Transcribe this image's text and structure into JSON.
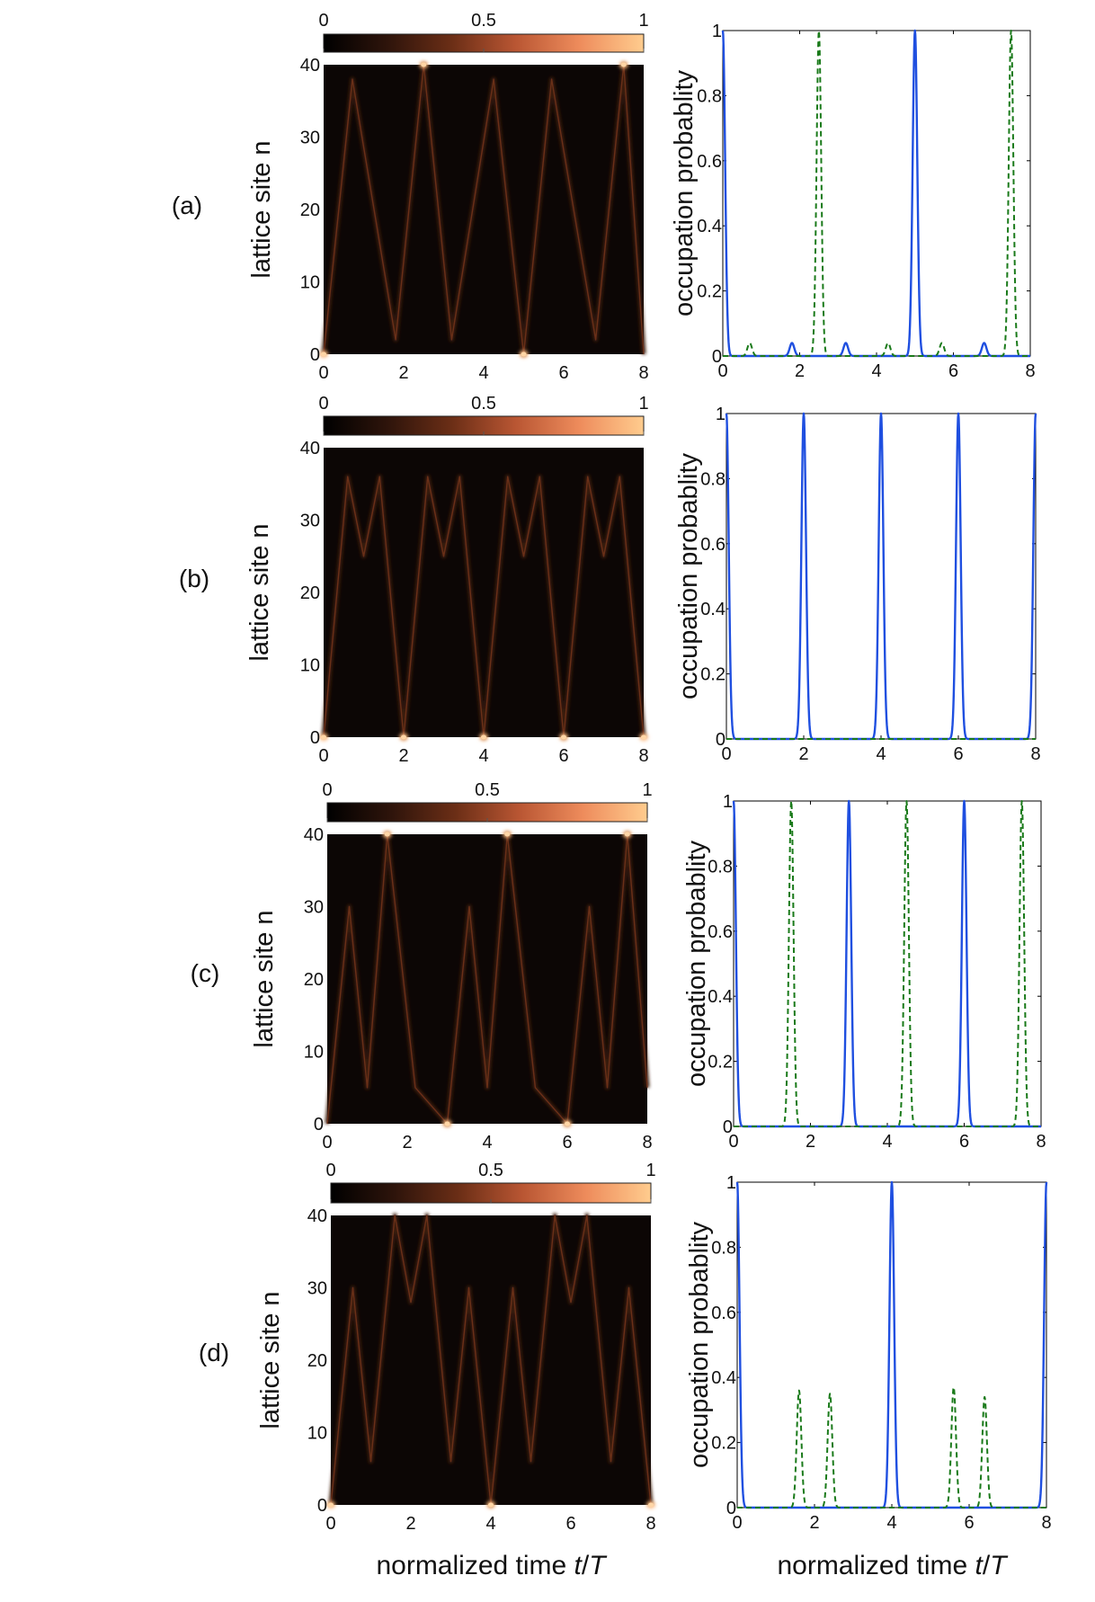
{
  "figure": {
    "xlabel": "normalized time t/T",
    "heatmap_ylabel": "lattice site n",
    "line_ylabel": "occupation probablity",
    "colorbar_ticks": [
      "0",
      "0.5",
      "1"
    ],
    "colormap": [
      "#000000",
      "#2e140b",
      "#6b2e16",
      "#b95633",
      "#ee8c5c",
      "#ffcc8e"
    ],
    "line_colors": {
      "solid": "#1f4fe0",
      "dashed": "#1a7a1a"
    }
  },
  "chart_data": [
    {
      "type": "heatmap",
      "panel": "(a)",
      "xlabel": "",
      "ylabel": "lattice site n",
      "xlim": [
        0,
        8
      ],
      "ylim": [
        0,
        40
      ],
      "xticks": [
        "0",
        "2",
        "4",
        "6",
        "8"
      ],
      "yticks": [
        "0",
        "10",
        "20",
        "30",
        "40"
      ],
      "colorbar": {
        "range": [
          0,
          1
        ],
        "ticks": [
          "0",
          "0.5",
          "1"
        ]
      },
      "trajectory_t": [
        0,
        0.72,
        1.8,
        2.5,
        3.2,
        4.25,
        5.0,
        5.7,
        6.8,
        7.5,
        8.0
      ],
      "trajectory_n": [
        0,
        38,
        2,
        40,
        2,
        38,
        0,
        38,
        2,
        40,
        0
      ],
      "bright_spots": [
        {
          "t": 0,
          "n": 0
        },
        {
          "t": 2.5,
          "n": 40
        },
        {
          "t": 5.0,
          "n": 0
        },
        {
          "t": 7.5,
          "n": 40
        }
      ]
    },
    {
      "type": "line",
      "panel": "(a)",
      "xlabel": "",
      "ylabel": "occupation probablity",
      "xlim": [
        0,
        8
      ],
      "ylim": [
        0,
        1
      ],
      "xticks": [
        "0",
        "2",
        "4",
        "6",
        "8"
      ],
      "yticks": [
        "0",
        "0.2",
        "0.4",
        "0.6",
        "0.8",
        "1"
      ],
      "series": [
        {
          "style": "solid",
          "peaks": [
            {
              "x": 0,
              "y": 1
            },
            {
              "x": 1.8,
              "y": 0.04
            },
            {
              "x": 3.2,
              "y": 0.04
            },
            {
              "x": 5.0,
              "y": 1
            },
            {
              "x": 6.8,
              "y": 0.04
            }
          ]
        },
        {
          "style": "dashed",
          "peaks": [
            {
              "x": 0.7,
              "y": 0.04
            },
            {
              "x": 2.5,
              "y": 1
            },
            {
              "x": 4.3,
              "y": 0.04
            },
            {
              "x": 5.7,
              "y": 0.04
            },
            {
              "x": 7.5,
              "y": 1
            }
          ]
        }
      ]
    },
    {
      "type": "heatmap",
      "panel": "(b)",
      "xlabel": "",
      "ylabel": "lattice site n",
      "xlim": [
        0,
        8
      ],
      "ylim": [
        0,
        40
      ],
      "xticks": [
        "0",
        "2",
        "4",
        "6",
        "8"
      ],
      "yticks": [
        "0",
        "10",
        "20",
        "30",
        "40"
      ],
      "colorbar": {
        "range": [
          0,
          1
        ],
        "ticks": [
          "0",
          "0.5",
          "1"
        ]
      },
      "trajectory_t": [
        0,
        0.6,
        1.0,
        1.4,
        2.0,
        2.6,
        3.0,
        3.4,
        4.0,
        4.6,
        5.0,
        5.4,
        6.0,
        6.6,
        7.0,
        7.4,
        8.0
      ],
      "trajectory_n": [
        0,
        36,
        25,
        36,
        0,
        36,
        25,
        36,
        0,
        36,
        25,
        36,
        0,
        36,
        25,
        36,
        0
      ],
      "bright_spots": [
        {
          "t": 0,
          "n": 0
        },
        {
          "t": 2,
          "n": 0
        },
        {
          "t": 4,
          "n": 0
        },
        {
          "t": 6,
          "n": 0
        },
        {
          "t": 8,
          "n": 0
        }
      ]
    },
    {
      "type": "line",
      "panel": "(b)",
      "xlabel": "",
      "ylabel": "occupation probablity",
      "xlim": [
        0,
        8
      ],
      "ylim": [
        0,
        1
      ],
      "xticks": [
        "0",
        "2",
        "4",
        "6",
        "8"
      ],
      "yticks": [
        "0",
        "0.2",
        "0.4",
        "0.6",
        "0.8",
        "1"
      ],
      "series": [
        {
          "style": "solid",
          "peaks": [
            {
              "x": 0,
              "y": 1
            },
            {
              "x": 2,
              "y": 1
            },
            {
              "x": 4,
              "y": 1
            },
            {
              "x": 6,
              "y": 1
            },
            {
              "x": 8,
              "y": 1
            }
          ]
        },
        {
          "style": "dashed",
          "peaks": []
        }
      ]
    },
    {
      "type": "heatmap",
      "panel": "(c)",
      "xlabel": "",
      "ylabel": "lattice site n",
      "xlim": [
        0,
        8
      ],
      "ylim": [
        0,
        40
      ],
      "xticks": [
        "0",
        "2",
        "4",
        "6",
        "8"
      ],
      "yticks": [
        "0",
        "10",
        "20",
        "30",
        "40"
      ],
      "colorbar": {
        "range": [
          0,
          1
        ],
        "ticks": [
          "0",
          "0.5",
          "1"
        ]
      },
      "trajectory_t": [
        0,
        0.55,
        1.0,
        1.5,
        2.2,
        3.0,
        3.55,
        4.0,
        4.5,
        5.2,
        6.0,
        6.55,
        7.0,
        7.5,
        8.0
      ],
      "trajectory_n": [
        0,
        30,
        5,
        40,
        5,
        0,
        30,
        5,
        40,
        5,
        0,
        30,
        5,
        40,
        5
      ],
      "bright_spots": [
        {
          "t": 1.5,
          "n": 40
        },
        {
          "t": 3.0,
          "n": 0
        },
        {
          "t": 4.5,
          "n": 40
        },
        {
          "t": 6.0,
          "n": 0
        },
        {
          "t": 7.5,
          "n": 40
        }
      ]
    },
    {
      "type": "line",
      "panel": "(c)",
      "xlabel": "",
      "ylabel": "occupation probablity",
      "xlim": [
        0,
        8
      ],
      "ylim": [
        0,
        1
      ],
      "xticks": [
        "0",
        "2",
        "4",
        "6",
        "8"
      ],
      "yticks": [
        "0",
        "0.2",
        "0.4",
        "0.6",
        "0.8",
        "1"
      ],
      "series": [
        {
          "style": "solid",
          "peaks": [
            {
              "x": 0,
              "y": 1
            },
            {
              "x": 3,
              "y": 1
            },
            {
              "x": 6,
              "y": 1
            }
          ]
        },
        {
          "style": "dashed",
          "peaks": [
            {
              "x": 1.5,
              "y": 1
            },
            {
              "x": 4.5,
              "y": 1
            },
            {
              "x": 7.5,
              "y": 1
            }
          ]
        }
      ]
    },
    {
      "type": "heatmap",
      "panel": "(d)",
      "xlabel": "normalized time t/T",
      "ylabel": "lattice site n",
      "xlim": [
        0,
        8
      ],
      "ylim": [
        0,
        40
      ],
      "xticks": [
        "0",
        "2",
        "4",
        "6",
        "8"
      ],
      "yticks": [
        "0",
        "10",
        "20",
        "30",
        "40"
      ],
      "colorbar": {
        "range": [
          0,
          1
        ],
        "ticks": [
          "0",
          "0.5",
          "1"
        ]
      },
      "trajectory_t": [
        0,
        0.55,
        1.0,
        1.6,
        2.0,
        2.4,
        3.0,
        3.45,
        4.0,
        4.55,
        5.0,
        5.6,
        6.0,
        6.4,
        7.0,
        7.45,
        8.0
      ],
      "trajectory_n": [
        0,
        30,
        6,
        40,
        28,
        40,
        6,
        30,
        0,
        30,
        6,
        40,
        28,
        40,
        6,
        30,
        0
      ],
      "bright_spots": [
        {
          "t": 0,
          "n": 0
        },
        {
          "t": 4,
          "n": 0
        },
        {
          "t": 8,
          "n": 0
        }
      ]
    },
    {
      "type": "line",
      "panel": "(d)",
      "xlabel": "normalized time t/T",
      "ylabel": "occupation probablity",
      "xlim": [
        0,
        8
      ],
      "ylim": [
        0,
        1
      ],
      "xticks": [
        "0",
        "2",
        "4",
        "6",
        "8"
      ],
      "yticks": [
        "0",
        "0.2",
        "0.4",
        "0.6",
        "0.8",
        "1"
      ],
      "series": [
        {
          "style": "solid",
          "peaks": [
            {
              "x": 0,
              "y": 1
            },
            {
              "x": 4,
              "y": 1
            },
            {
              "x": 8,
              "y": 1
            }
          ]
        },
        {
          "style": "dashed",
          "peaks": [
            {
              "x": 1.6,
              "y": 0.36
            },
            {
              "x": 2.4,
              "y": 0.35
            },
            {
              "x": 5.6,
              "y": 0.37
            },
            {
              "x": 6.4,
              "y": 0.34
            }
          ]
        }
      ]
    }
  ]
}
